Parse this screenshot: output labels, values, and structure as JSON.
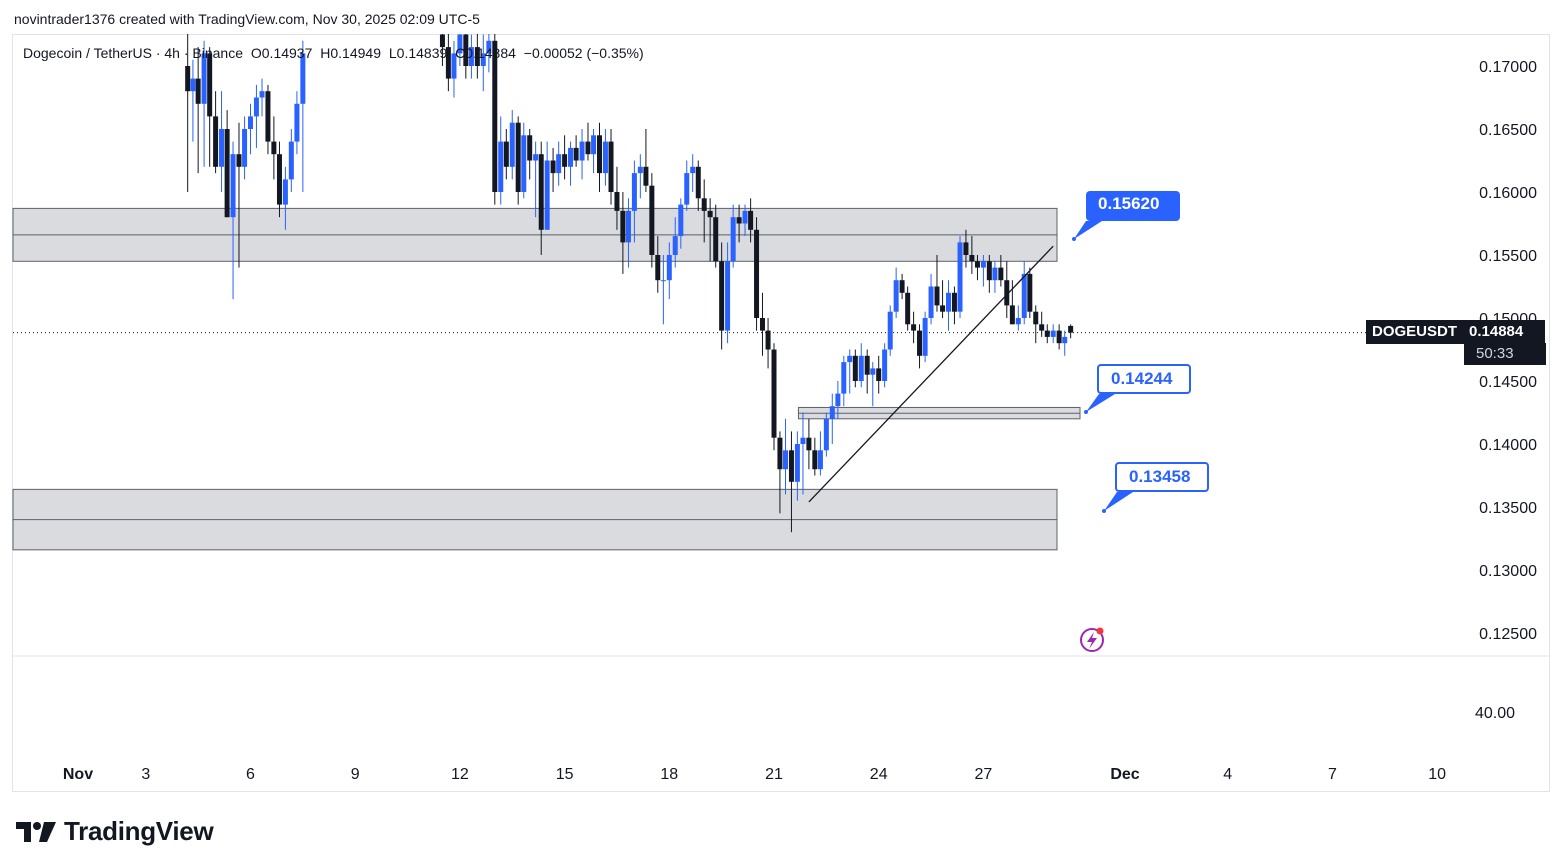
{
  "header": {
    "credit": "novintrader1376 created with TradingView.com, Nov 30, 2025 02:09 UTC-5"
  },
  "legend": {
    "pair": "Dogecoin / TetherUS · 4h · Binance",
    "open": "O0.14937",
    "high": "H0.14949",
    "low": "L0.14839",
    "close": "C0.14884",
    "change": "−0.00052 (−0.35%)"
  },
  "price_tag": {
    "symbol": "DOGEUSDT",
    "value": "0.14884",
    "timer": "50:33"
  },
  "callouts": {
    "upper": "0.15620",
    "middle": "0.14244",
    "lower": "0.13458"
  },
  "indicator_axis_label": "40.00",
  "brand": "TradingView",
  "colors": {
    "up": "#2962ff",
    "down": "#131722",
    "zone_fill": "#d6d7dc",
    "zone_stroke": "#5d606b",
    "accent": "#2962ff",
    "lightning": "#9c27b0"
  },
  "chart_data": {
    "type": "candlestick",
    "symbol": "DOGEUSDT",
    "interval": "4h",
    "ylim": [
      0.1225,
      0.1725
    ],
    "y_ticks": [
      "0.17000",
      "0.16500",
      "0.16000",
      "0.15500",
      "0.15000",
      "0.14500",
      "0.14000",
      "0.13500",
      "0.13000",
      "0.12500"
    ],
    "y_tick_values": [
      0.17,
      0.165,
      0.16,
      0.155,
      0.15,
      0.145,
      0.14,
      0.135,
      0.13,
      0.125
    ],
    "x_ticks": [
      "Nov",
      "3",
      "6",
      "9",
      "12",
      "15",
      "18",
      "21",
      "24",
      "27",
      "Dec",
      "4",
      "7",
      "10"
    ],
    "x_tick_days": [
      1,
      3,
      6,
      9,
      12,
      15,
      18,
      21,
      24,
      27,
      31,
      34,
      37,
      40
    ],
    "last_price": 0.14884,
    "zones": [
      {
        "top": 0.1587,
        "bottom": 0.1545,
        "mid": 0.1566,
        "from_day": 0.0,
        "to_day": 30.2
      },
      {
        "top": 0.1429,
        "bottom": 0.142,
        "mid": 0.14244,
        "from_day": 21.7,
        "to_day": 30.9
      },
      {
        "top": 0.1364,
        "bottom": 0.1316,
        "mid": 0.134,
        "from_day": 0.0,
        "to_day": 30.2
      }
    ],
    "trendline": {
      "from": {
        "day": 22.0,
        "price": 0.1354
      },
      "to": {
        "day": 29.0,
        "price": 0.1557
      }
    },
    "candles": [
      {
        "day": 4.2,
        "o": 0.17,
        "h": 0.173,
        "l": 0.16,
        "c": 0.168
      },
      {
        "day": 4.35,
        "o": 0.168,
        "h": 0.1705,
        "l": 0.164,
        "c": 0.169
      },
      {
        "day": 4.5,
        "o": 0.169,
        "h": 0.1715,
        "l": 0.1615,
        "c": 0.167
      },
      {
        "day": 4.67,
        "o": 0.167,
        "h": 0.172,
        "l": 0.162,
        "c": 0.171
      },
      {
        "day": 4.83,
        "o": 0.171,
        "h": 0.1715,
        "l": 0.162,
        "c": 0.166
      },
      {
        "day": 5.0,
        "o": 0.166,
        "h": 0.168,
        "l": 0.1615,
        "c": 0.162
      },
      {
        "day": 5.17,
        "o": 0.162,
        "h": 0.168,
        "l": 0.16,
        "c": 0.165
      },
      {
        "day": 5.33,
        "o": 0.165,
        "h": 0.1665,
        "l": 0.158,
        "c": 0.158
      },
      {
        "day": 5.5,
        "o": 0.158,
        "h": 0.164,
        "l": 0.1515,
        "c": 0.163
      },
      {
        "day": 5.67,
        "o": 0.163,
        "h": 0.1655,
        "l": 0.154,
        "c": 0.162
      },
      {
        "day": 5.83,
        "o": 0.162,
        "h": 0.166,
        "l": 0.161,
        "c": 0.165
      },
      {
        "day": 6.0,
        "o": 0.165,
        "h": 0.167,
        "l": 0.163,
        "c": 0.166
      },
      {
        "day": 6.17,
        "o": 0.166,
        "h": 0.1685,
        "l": 0.1635,
        "c": 0.1675
      },
      {
        "day": 6.33,
        "o": 0.1675,
        "h": 0.169,
        "l": 0.166,
        "c": 0.168
      },
      {
        "day": 6.5,
        "o": 0.168,
        "h": 0.1685,
        "l": 0.163,
        "c": 0.164
      },
      {
        "day": 6.67,
        "o": 0.164,
        "h": 0.166,
        "l": 0.161,
        "c": 0.163
      },
      {
        "day": 6.83,
        "o": 0.163,
        "h": 0.164,
        "l": 0.158,
        "c": 0.159
      },
      {
        "day": 7.0,
        "o": 0.159,
        "h": 0.162,
        "l": 0.157,
        "c": 0.161
      },
      {
        "day": 7.17,
        "o": 0.161,
        "h": 0.165,
        "l": 0.16,
        "c": 0.164
      },
      {
        "day": 7.33,
        "o": 0.164,
        "h": 0.168,
        "l": 0.163,
        "c": 0.167
      },
      {
        "day": 7.5,
        "o": 0.167,
        "h": 0.172,
        "l": 0.16,
        "c": 0.171
      },
      {
        "day": 11.5,
        "o": 0.1725,
        "h": 0.173,
        "l": 0.17,
        "c": 0.1715
      },
      {
        "day": 11.67,
        "o": 0.1715,
        "h": 0.173,
        "l": 0.168,
        "c": 0.169
      },
      {
        "day": 11.83,
        "o": 0.169,
        "h": 0.172,
        "l": 0.1675,
        "c": 0.171
      },
      {
        "day": 12.0,
        "o": 0.171,
        "h": 0.173,
        "l": 0.17,
        "c": 0.1725
      },
      {
        "day": 12.17,
        "o": 0.1725,
        "h": 0.173,
        "l": 0.169,
        "c": 0.17
      },
      {
        "day": 12.33,
        "o": 0.17,
        "h": 0.1725,
        "l": 0.169,
        "c": 0.1715
      },
      {
        "day": 12.5,
        "o": 0.1715,
        "h": 0.173,
        "l": 0.169,
        "c": 0.17
      },
      {
        "day": 12.67,
        "o": 0.17,
        "h": 0.1725,
        "l": 0.168,
        "c": 0.171
      },
      {
        "day": 12.83,
        "o": 0.171,
        "h": 0.173,
        "l": 0.1695,
        "c": 0.172
      },
      {
        "day": 13.0,
        "o": 0.172,
        "h": 0.173,
        "l": 0.159,
        "c": 0.16
      },
      {
        "day": 13.17,
        "o": 0.16,
        "h": 0.166,
        "l": 0.159,
        "c": 0.164
      },
      {
        "day": 13.33,
        "o": 0.164,
        "h": 0.165,
        "l": 0.161,
        "c": 0.162
      },
      {
        "day": 13.5,
        "o": 0.162,
        "h": 0.1665,
        "l": 0.161,
        "c": 0.1655
      },
      {
        "day": 13.67,
        "o": 0.1655,
        "h": 0.166,
        "l": 0.159,
        "c": 0.16
      },
      {
        "day": 13.83,
        "o": 0.16,
        "h": 0.1655,
        "l": 0.1595,
        "c": 0.1645
      },
      {
        "day": 14.0,
        "o": 0.1645,
        "h": 0.165,
        "l": 0.161,
        "c": 0.1625
      },
      {
        "day": 14.17,
        "o": 0.1625,
        "h": 0.164,
        "l": 0.158,
        "c": 0.163
      },
      {
        "day": 14.33,
        "o": 0.163,
        "h": 0.164,
        "l": 0.155,
        "c": 0.157
      },
      {
        "day": 14.5,
        "o": 0.157,
        "h": 0.164,
        "l": 0.157,
        "c": 0.1625
      },
      {
        "day": 14.67,
        "o": 0.1625,
        "h": 0.1635,
        "l": 0.16,
        "c": 0.1615
      },
      {
        "day": 14.83,
        "o": 0.1615,
        "h": 0.164,
        "l": 0.1605,
        "c": 0.163
      },
      {
        "day": 15.0,
        "o": 0.163,
        "h": 0.1645,
        "l": 0.161,
        "c": 0.162
      },
      {
        "day": 15.17,
        "o": 0.162,
        "h": 0.164,
        "l": 0.1605,
        "c": 0.1635
      },
      {
        "day": 15.33,
        "o": 0.1635,
        "h": 0.1645,
        "l": 0.162,
        "c": 0.1625
      },
      {
        "day": 15.5,
        "o": 0.1625,
        "h": 0.165,
        "l": 0.161,
        "c": 0.164
      },
      {
        "day": 15.67,
        "o": 0.164,
        "h": 0.1655,
        "l": 0.1625,
        "c": 0.163
      },
      {
        "day": 15.83,
        "o": 0.163,
        "h": 0.165,
        "l": 0.1615,
        "c": 0.1645
      },
      {
        "day": 16.0,
        "o": 0.1645,
        "h": 0.1655,
        "l": 0.16,
        "c": 0.1615
      },
      {
        "day": 16.17,
        "o": 0.1615,
        "h": 0.165,
        "l": 0.1605,
        "c": 0.164
      },
      {
        "day": 16.33,
        "o": 0.164,
        "h": 0.165,
        "l": 0.159,
        "c": 0.16
      },
      {
        "day": 16.5,
        "o": 0.16,
        "h": 0.162,
        "l": 0.157,
        "c": 0.1585
      },
      {
        "day": 16.67,
        "o": 0.1585,
        "h": 0.16,
        "l": 0.1535,
        "c": 0.156
      },
      {
        "day": 16.83,
        "o": 0.156,
        "h": 0.1595,
        "l": 0.154,
        "c": 0.1585
      },
      {
        "day": 17.0,
        "o": 0.1585,
        "h": 0.1625,
        "l": 0.156,
        "c": 0.1615
      },
      {
        "day": 17.17,
        "o": 0.1615,
        "h": 0.163,
        "l": 0.1595,
        "c": 0.162
      },
      {
        "day": 17.33,
        "o": 0.162,
        "h": 0.165,
        "l": 0.16,
        "c": 0.1605
      },
      {
        "day": 17.5,
        "o": 0.1605,
        "h": 0.1615,
        "l": 0.154,
        "c": 0.155
      },
      {
        "day": 17.67,
        "o": 0.155,
        "h": 0.1565,
        "l": 0.152,
        "c": 0.153
      },
      {
        "day": 17.83,
        "o": 0.153,
        "h": 0.155,
        "l": 0.1495,
        "c": 0.153
      },
      {
        "day": 18.0,
        "o": 0.153,
        "h": 0.156,
        "l": 0.1515,
        "c": 0.155
      },
      {
        "day": 18.17,
        "o": 0.155,
        "h": 0.158,
        "l": 0.154,
        "c": 0.1565
      },
      {
        "day": 18.33,
        "o": 0.1565,
        "h": 0.1595,
        "l": 0.1555,
        "c": 0.159
      },
      {
        "day": 18.5,
        "o": 0.159,
        "h": 0.1625,
        "l": 0.1585,
        "c": 0.1615
      },
      {
        "day": 18.67,
        "o": 0.1615,
        "h": 0.163,
        "l": 0.16,
        "c": 0.162
      },
      {
        "day": 18.83,
        "o": 0.162,
        "h": 0.1625,
        "l": 0.1585,
        "c": 0.1595
      },
      {
        "day": 19.0,
        "o": 0.1595,
        "h": 0.161,
        "l": 0.156,
        "c": 0.1585
      },
      {
        "day": 19.17,
        "o": 0.1585,
        "h": 0.1595,
        "l": 0.1545,
        "c": 0.158
      },
      {
        "day": 19.33,
        "o": 0.158,
        "h": 0.159,
        "l": 0.154,
        "c": 0.1545
      },
      {
        "day": 19.5,
        "o": 0.1545,
        "h": 0.156,
        "l": 0.1475,
        "c": 0.149
      },
      {
        "day": 19.67,
        "o": 0.149,
        "h": 0.156,
        "l": 0.148,
        "c": 0.1545
      },
      {
        "day": 19.83,
        "o": 0.1545,
        "h": 0.159,
        "l": 0.154,
        "c": 0.158
      },
      {
        "day": 20.0,
        "o": 0.158,
        "h": 0.159,
        "l": 0.156,
        "c": 0.1575
      },
      {
        "day": 20.17,
        "o": 0.1575,
        "h": 0.159,
        "l": 0.1565,
        "c": 0.1585
      },
      {
        "day": 20.33,
        "o": 0.1585,
        "h": 0.1595,
        "l": 0.156,
        "c": 0.157
      },
      {
        "day": 20.5,
        "o": 0.157,
        "h": 0.158,
        "l": 0.149,
        "c": 0.15
      },
      {
        "day": 20.67,
        "o": 0.15,
        "h": 0.152,
        "l": 0.147,
        "c": 0.149
      },
      {
        "day": 20.83,
        "o": 0.149,
        "h": 0.15,
        "l": 0.146,
        "c": 0.1475
      },
      {
        "day": 21.0,
        "o": 0.1475,
        "h": 0.148,
        "l": 0.1395,
        "c": 0.1405
      },
      {
        "day": 21.17,
        "o": 0.1405,
        "h": 0.141,
        "l": 0.1345,
        "c": 0.138
      },
      {
        "day": 21.33,
        "o": 0.138,
        "h": 0.142,
        "l": 0.136,
        "c": 0.1395
      },
      {
        "day": 21.5,
        "o": 0.1395,
        "h": 0.141,
        "l": 0.133,
        "c": 0.137
      },
      {
        "day": 21.67,
        "o": 0.137,
        "h": 0.141,
        "l": 0.1355,
        "c": 0.14
      },
      {
        "day": 21.83,
        "o": 0.14,
        "h": 0.1425,
        "l": 0.136,
        "c": 0.1405
      },
      {
        "day": 22.0,
        "o": 0.1405,
        "h": 0.142,
        "l": 0.138,
        "c": 0.1395
      },
      {
        "day": 22.17,
        "o": 0.1395,
        "h": 0.1405,
        "l": 0.1375,
        "c": 0.138
      },
      {
        "day": 22.33,
        "o": 0.138,
        "h": 0.141,
        "l": 0.1375,
        "c": 0.1395
      },
      {
        "day": 22.5,
        "o": 0.1395,
        "h": 0.1425,
        "l": 0.139,
        "c": 0.142
      },
      {
        "day": 22.67,
        "o": 0.142,
        "h": 0.144,
        "l": 0.14,
        "c": 0.143
      },
      {
        "day": 22.83,
        "o": 0.143,
        "h": 0.145,
        "l": 0.142,
        "c": 0.144
      },
      {
        "day": 23.0,
        "o": 0.144,
        "h": 0.147,
        "l": 0.143,
        "c": 0.1465
      },
      {
        "day": 23.17,
        "o": 0.1465,
        "h": 0.1475,
        "l": 0.144,
        "c": 0.147
      },
      {
        "day": 23.33,
        "o": 0.147,
        "h": 0.1475,
        "l": 0.1445,
        "c": 0.145
      },
      {
        "day": 23.5,
        "o": 0.145,
        "h": 0.148,
        "l": 0.1445,
        "c": 0.147
      },
      {
        "day": 23.67,
        "o": 0.147,
        "h": 0.1475,
        "l": 0.144,
        "c": 0.1455
      },
      {
        "day": 23.83,
        "o": 0.1455,
        "h": 0.1465,
        "l": 0.143,
        "c": 0.146
      },
      {
        "day": 24.0,
        "o": 0.146,
        "h": 0.147,
        "l": 0.144,
        "c": 0.145
      },
      {
        "day": 24.17,
        "o": 0.145,
        "h": 0.148,
        "l": 0.1445,
        "c": 0.1475
      },
      {
        "day": 24.33,
        "o": 0.1475,
        "h": 0.151,
        "l": 0.147,
        "c": 0.1505
      },
      {
        "day": 24.5,
        "o": 0.1505,
        "h": 0.154,
        "l": 0.15,
        "c": 0.153
      },
      {
        "day": 24.67,
        "o": 0.153,
        "h": 0.1535,
        "l": 0.1515,
        "c": 0.152
      },
      {
        "day": 24.83,
        "o": 0.152,
        "h": 0.1525,
        "l": 0.149,
        "c": 0.1495
      },
      {
        "day": 25.0,
        "o": 0.1495,
        "h": 0.1505,
        "l": 0.148,
        "c": 0.149
      },
      {
        "day": 25.17,
        "o": 0.149,
        "h": 0.1495,
        "l": 0.146,
        "c": 0.147
      },
      {
        "day": 25.33,
        "o": 0.147,
        "h": 0.1505,
        "l": 0.1465,
        "c": 0.15
      },
      {
        "day": 25.5,
        "o": 0.15,
        "h": 0.1535,
        "l": 0.1495,
        "c": 0.1525
      },
      {
        "day": 25.67,
        "o": 0.1525,
        "h": 0.155,
        "l": 0.1505,
        "c": 0.151
      },
      {
        "day": 25.83,
        "o": 0.151,
        "h": 0.153,
        "l": 0.15,
        "c": 0.1505
      },
      {
        "day": 26.0,
        "o": 0.1505,
        "h": 0.153,
        "l": 0.149,
        "c": 0.152
      },
      {
        "day": 26.17,
        "o": 0.152,
        "h": 0.1525,
        "l": 0.1495,
        "c": 0.1505
      },
      {
        "day": 26.33,
        "o": 0.1505,
        "h": 0.1565,
        "l": 0.15,
        "c": 0.156
      },
      {
        "day": 26.5,
        "o": 0.156,
        "h": 0.157,
        "l": 0.154,
        "c": 0.155
      },
      {
        "day": 26.67,
        "o": 0.155,
        "h": 0.1565,
        "l": 0.1535,
        "c": 0.1545
      },
      {
        "day": 26.83,
        "o": 0.1545,
        "h": 0.155,
        "l": 0.153,
        "c": 0.154
      },
      {
        "day": 27.0,
        "o": 0.154,
        "h": 0.155,
        "l": 0.1525,
        "c": 0.1545
      },
      {
        "day": 27.17,
        "o": 0.1545,
        "h": 0.155,
        "l": 0.152,
        "c": 0.153
      },
      {
        "day": 27.33,
        "o": 0.153,
        "h": 0.1545,
        "l": 0.152,
        "c": 0.154
      },
      {
        "day": 27.5,
        "o": 0.154,
        "h": 0.155,
        "l": 0.1525,
        "c": 0.153
      },
      {
        "day": 27.67,
        "o": 0.153,
        "h": 0.1545,
        "l": 0.15,
        "c": 0.151
      },
      {
        "day": 27.83,
        "o": 0.151,
        "h": 0.153,
        "l": 0.1495,
        "c": 0.1495
      },
      {
        "day": 28.0,
        "o": 0.1495,
        "h": 0.151,
        "l": 0.149,
        "c": 0.15
      },
      {
        "day": 28.17,
        "o": 0.15,
        "h": 0.1545,
        "l": 0.1495,
        "c": 0.1535
      },
      {
        "day": 28.33,
        "o": 0.1535,
        "h": 0.154,
        "l": 0.15,
        "c": 0.1505
      },
      {
        "day": 28.5,
        "o": 0.1505,
        "h": 0.151,
        "l": 0.148,
        "c": 0.1495
      },
      {
        "day": 28.67,
        "o": 0.1495,
        "h": 0.1505,
        "l": 0.1485,
        "c": 0.149
      },
      {
        "day": 28.83,
        "o": 0.149,
        "h": 0.1495,
        "l": 0.148,
        "c": 0.1485
      },
      {
        "day": 29.0,
        "o": 0.1485,
        "h": 0.1495,
        "l": 0.148,
        "c": 0.149
      },
      {
        "day": 29.17,
        "o": 0.149,
        "h": 0.1495,
        "l": 0.1475,
        "c": 0.148
      },
      {
        "day": 29.33,
        "o": 0.148,
        "h": 0.149,
        "l": 0.147,
        "c": 0.1485
      },
      {
        "day": 29.5,
        "o": 0.14937,
        "h": 0.14949,
        "l": 0.14839,
        "c": 0.14884
      }
    ]
  }
}
